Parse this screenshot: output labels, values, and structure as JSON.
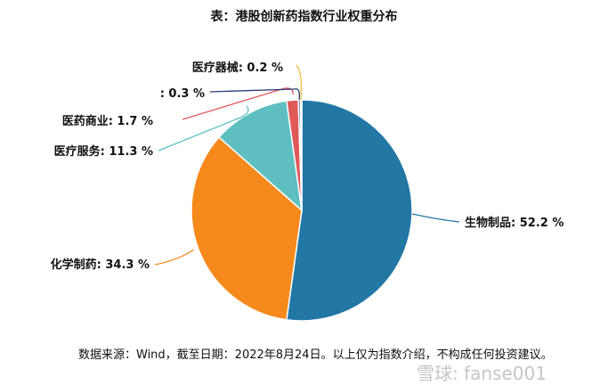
{
  "chart_data": {
    "type": "pie",
    "title": "表：港股创新药指数行业权重分布",
    "slices": [
      {
        "label": "生物制品",
        "value": 52.2,
        "display": "生物制品: 52.2 %",
        "color": "#2277a5"
      },
      {
        "label": "化学制药",
        "value": 34.3,
        "display": "化学制药: 34.3 %",
        "color": "#f5891c"
      },
      {
        "label": "医疗服务",
        "value": 11.3,
        "display": "医疗服务: 11.3 %",
        "color": "#5fbfc0"
      },
      {
        "label": "医药商业",
        "value": 1.7,
        "display": "医药商业: 1.7 %",
        "color": "#e05a5a"
      },
      {
        "label": "",
        "value": 0.3,
        "display": ": 0.3 %",
        "color": "#2b3a7a"
      },
      {
        "label": "医疗器械",
        "value": 0.2,
        "display": "医疗器械: 0.2 %",
        "color": "#f0c040"
      }
    ],
    "start_angle": "top",
    "direction": "clockwise",
    "legend": "none"
  },
  "footer": "数据来源：Wind，截至日期：2022年8月24日。以上仅为指数介绍，不构成任何投资建议。",
  "watermark": "雪球: fanse001"
}
